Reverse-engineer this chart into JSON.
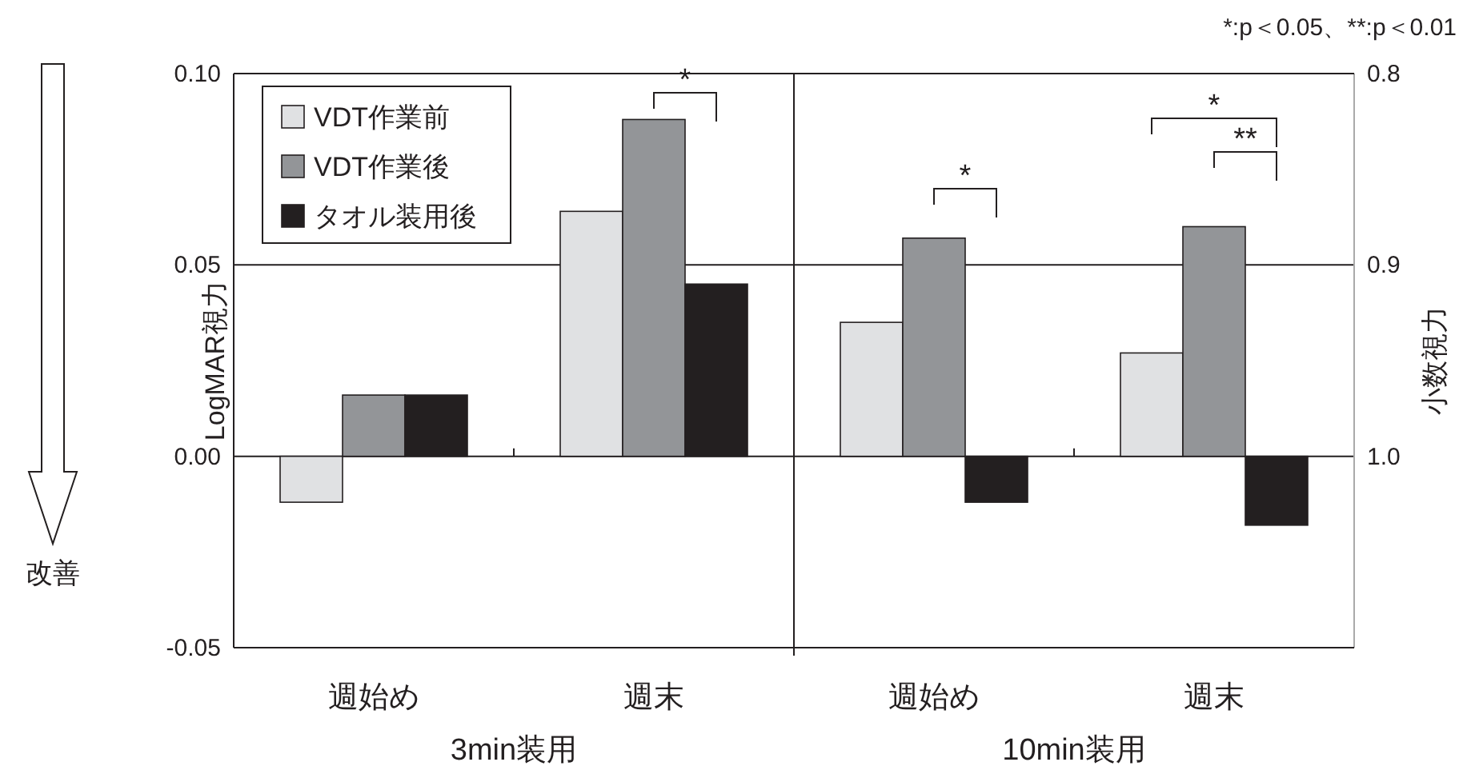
{
  "chart_data": {
    "type": "bar",
    "categories": [
      "週始め",
      "週末",
      "週始め",
      "週末"
    ],
    "series": [
      {
        "name": "VDT作業前",
        "color": "#e0e1e3",
        "values": [
          -0.012,
          0.064,
          0.035,
          0.027
        ]
      },
      {
        "name": "VDT作業後",
        "color": "#939598",
        "values": [
          0.016,
          0.088,
          0.057,
          0.06
        ]
      },
      {
        "name": "タオル装用後",
        "color": "#231f20",
        "values": [
          0.016,
          0.045,
          -0.012,
          -0.018
        ]
      }
    ],
    "ylabel": "LogMAR視力",
    "y2label": "小数視力",
    "ylim": [
      -0.05,
      0.1
    ],
    "yticks": [
      {
        "value": -0.05,
        "label": "-0.05"
      },
      {
        "value": 0,
        "label": "0.00"
      },
      {
        "value": 0.05,
        "label": "0.05"
      },
      {
        "value": 0.1,
        "label": "0.10"
      }
    ],
    "y2lim": [
      1.1,
      0.8
    ],
    "y2ticks": [
      0.8,
      0.9,
      {
        "value": 1.0,
        "label": "1.0"
      }
    ],
    "grid": "y",
    "legend": "top left",
    "annotations": [
      "*:p＜0.05、**:p＜0.01",
      "*",
      "*",
      "*",
      "**",
      "改善",
      "3min装用",
      "10min装用"
    ]
  }
}
